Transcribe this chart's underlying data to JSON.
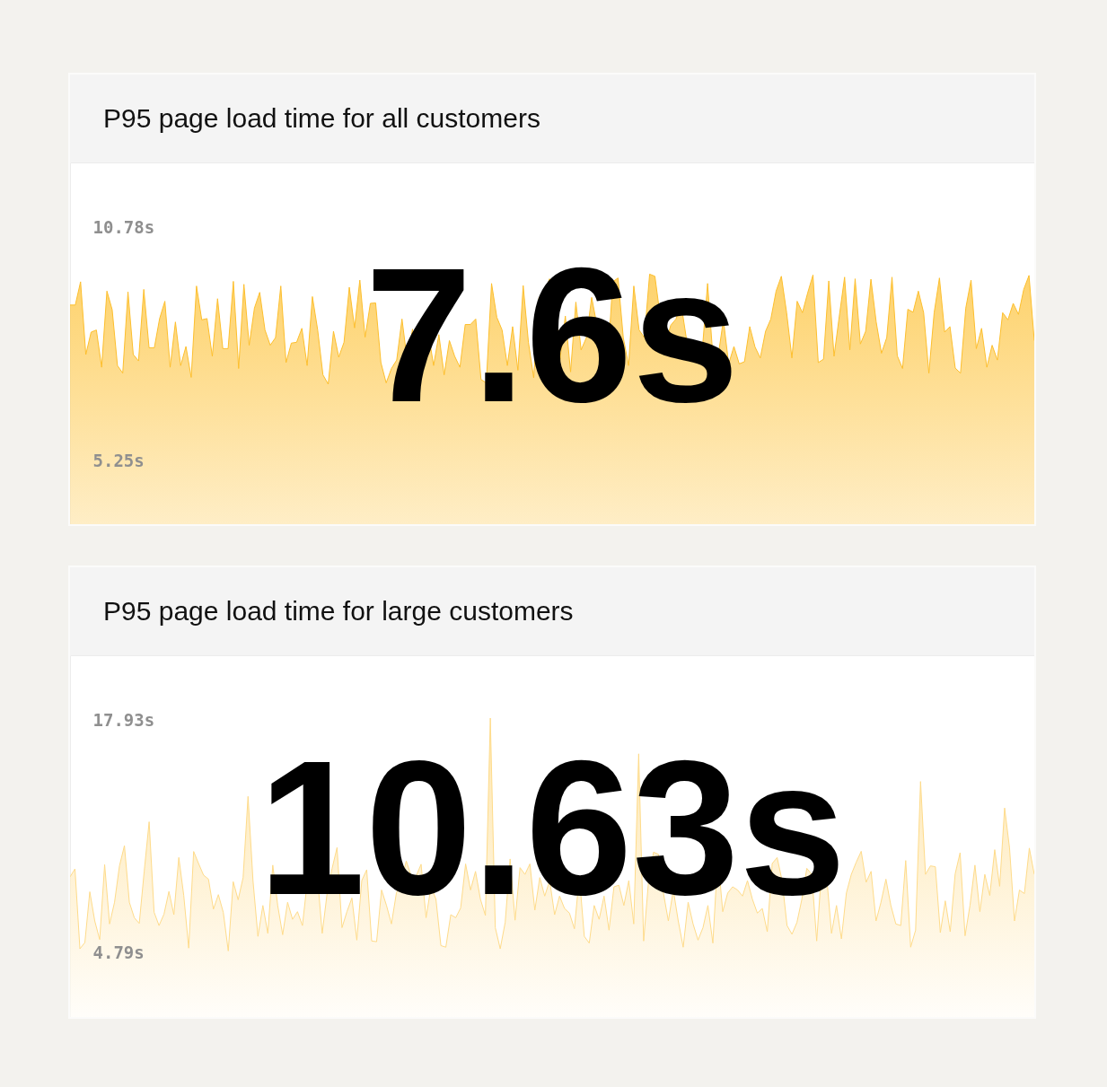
{
  "chart_data": [
    {
      "type": "area",
      "title": "P95 page load time for all customers",
      "color": "#fdbf2d",
      "tick_labels": "y",
      "ylim": [
        3.76,
        12.31
      ],
      "yticks": [
        {
          "value": 5.25,
          "label": "5.25s"
        },
        {
          "value": 10.78,
          "label": "10.78s"
        }
      ],
      "annotations": [
        "7.6s"
      ],
      "categories": [
        null,
        null,
        null,
        null,
        null,
        null,
        null,
        null,
        null,
        null,
        null,
        null,
        null,
        null,
        null,
        null,
        null,
        null,
        null,
        null,
        null,
        null,
        null,
        null,
        null,
        null,
        null,
        null,
        null,
        null,
        null,
        null,
        null,
        null,
        null,
        null,
        null,
        null,
        null,
        null,
        null,
        null,
        null,
        null,
        null,
        null,
        null,
        null,
        null,
        null,
        null,
        null,
        null,
        null,
        null,
        null,
        null,
        null,
        null,
        null,
        null,
        null,
        null,
        null,
        null,
        null,
        null,
        null,
        null,
        null,
        null,
        null,
        null,
        null,
        null,
        null,
        null,
        null,
        null,
        null,
        null,
        null,
        null,
        null,
        null,
        null,
        null,
        null,
        null,
        null,
        null,
        null,
        null,
        null,
        null,
        null,
        null,
        null,
        null,
        null,
        null,
        null,
        null,
        null,
        null,
        null,
        null,
        null,
        null,
        null,
        null,
        null,
        null,
        null,
        null,
        null,
        null,
        null,
        null,
        null,
        null,
        null,
        null,
        null,
        null,
        null,
        null,
        null,
        null,
        null,
        null,
        null,
        null,
        null,
        null,
        null,
        null,
        null,
        null,
        null,
        null,
        null,
        null,
        null,
        null,
        null,
        null,
        null,
        null,
        null,
        null,
        null,
        null,
        null,
        null,
        null,
        null,
        null,
        null,
        null,
        null,
        null,
        null,
        null,
        null,
        null,
        null,
        null,
        null,
        null,
        null,
        null,
        null,
        null,
        null,
        null,
        null,
        null,
        null,
        null,
        null,
        null,
        null,
        null
      ],
      "values": [
        8.94,
        8.94,
        9.49,
        7.77,
        8.3,
        8.35,
        7.47,
        9.27,
        8.83,
        7.51,
        7.33,
        9.25,
        7.77,
        7.62,
        9.31,
        7.93,
        7.93,
        8.62,
        9.03,
        7.47,
        8.54,
        7.51,
        7.96,
        7.23,
        9.39,
        8.59,
        8.62,
        7.73,
        9.09,
        7.91,
        7.91,
        9.5,
        7.44,
        9.43,
        7.99,
        8.87,
        9.24,
        8.35,
        7.99,
        8.17,
        9.39,
        7.58,
        8.04,
        8.06,
        8.39,
        7.51,
        9.14,
        8.35,
        7.29,
        7.07,
        8.32,
        7.71,
        8.06,
        9.36,
        8.4,
        9.53,
        8.18,
        8.98,
        8.99,
        7.58,
        7.1,
        7.44,
        7.64,
        8.61,
        7.62,
        8.37,
        7.12,
        8.67,
        8.28,
        7.51,
        8.24,
        7.29,
        8.1,
        7.73,
        7.47,
        8.48,
        8.48,
        8.61,
        7.18,
        7.1,
        9.45,
        8.65,
        8.35,
        7.51,
        8.43,
        7.4,
        9.4,
        8.06,
        7.22,
        9.12,
        9.2,
        9.56,
        9.27,
        7.66,
        8.68,
        7.36,
        9.01,
        7.88,
        8.17,
        9.12,
        8.46,
        7.29,
        7.51,
        9.49,
        9.58,
        8.17,
        7.51,
        9.39,
        8.35,
        8.17,
        9.67,
        9.62,
        8.68,
        8.02,
        8.46,
        8.61,
        8.94,
        8.13,
        7.95,
        7.84,
        7.88,
        9.45,
        7.73,
        7.73,
        8.59,
        7.55,
        7.96,
        7.55,
        7.6,
        8.43,
        7.95,
        7.69,
        8.32,
        8.61,
        9.27,
        9.62,
        8.76,
        7.69,
        9.03,
        8.76,
        9.23,
        9.65,
        7.58,
        7.66,
        9.51,
        7.73,
        8.68,
        9.6,
        7.88,
        9.56,
        8.02,
        8.32,
        9.55,
        8.54,
        7.8,
        8.17,
        9.6,
        7.74,
        7.44,
        8.84,
        8.77,
        9.27,
        8.76,
        7.33,
        8.76,
        9.58,
        8.3,
        8.43,
        7.45,
        7.33,
        8.87,
        9.53,
        7.91,
        8.39,
        7.47,
        7.99,
        7.64,
        8.76,
        8.59,
        8.98,
        8.72,
        9.31,
        9.64,
        8.1
      ]
    },
    {
      "type": "area",
      "title": "P95 page load time for large customers",
      "color": "#fedb8a",
      "tick_labels": "y",
      "ylim": [
        1.2,
        21.57
      ],
      "yticks": [
        {
          "value": 4.79,
          "label": "4.79s"
        },
        {
          "value": 17.93,
          "label": "17.93s"
        }
      ],
      "annotations": [
        "10.63s"
      ],
      "categories": [
        null,
        null,
        null,
        null,
        null,
        null,
        null,
        null,
        null,
        null,
        null,
        null,
        null,
        null,
        null,
        null,
        null,
        null,
        null,
        null,
        null,
        null,
        null,
        null,
        null,
        null,
        null,
        null,
        null,
        null,
        null,
        null,
        null,
        null,
        null,
        null,
        null,
        null,
        null,
        null,
        null,
        null,
        null,
        null,
        null,
        null,
        null,
        null,
        null,
        null,
        null,
        null,
        null,
        null,
        null,
        null,
        null,
        null,
        null,
        null,
        null,
        null,
        null,
        null,
        null,
        null,
        null,
        null,
        null,
        null,
        null,
        null,
        null,
        null,
        null,
        null,
        null,
        null,
        null,
        null,
        null,
        null,
        null,
        null,
        null,
        null,
        null,
        null,
        null,
        null,
        null,
        null,
        null,
        null,
        null,
        null,
        null,
        null,
        null,
        null,
        null,
        null,
        null,
        null,
        null,
        null,
        null,
        null,
        null,
        null,
        null,
        null,
        null,
        null,
        null,
        null,
        null,
        null,
        null,
        null,
        null,
        null,
        null,
        null,
        null,
        null,
        null,
        null,
        null,
        null,
        null,
        null,
        null,
        null,
        null,
        null,
        null,
        null,
        null,
        null,
        null,
        null,
        null,
        null,
        null,
        null,
        null,
        null,
        null,
        null,
        null,
        null,
        null,
        null,
        null,
        null,
        null,
        null,
        null,
        null,
        null,
        null,
        null,
        null,
        null,
        null,
        null,
        null,
        null,
        null,
        null,
        null,
        null,
        null,
        null,
        null,
        null,
        null,
        null,
        null,
        null,
        null,
        null,
        null,
        null,
        null,
        null,
        null,
        null,
        null,
        null,
        null,
        null,
        null,
        null,
        null
      ],
      "values": [
        9.09,
        9.54,
        5.04,
        5.39,
        8.25,
        6.61,
        5.56,
        9.78,
        6.44,
        7.66,
        9.71,
        10.85,
        7.66,
        6.79,
        6.47,
        9.4,
        12.19,
        7.1,
        6.35,
        6.99,
        8.27,
        6.96,
        10.18,
        8.04,
        5.08,
        10.52,
        9.84,
        9.19,
        8.96,
        7.27,
        8.09,
        7.08,
        4.92,
        8.82,
        7.8,
        9.05,
        13.62,
        8.88,
        5.74,
        7.48,
        5.91,
        9.75,
        7.48,
        5.83,
        7.66,
        6.7,
        7.13,
        6.35,
        8.88,
        9.4,
        9.23,
        5.91,
        8.18,
        9.57,
        10.74,
        6.23,
        7.13,
        7.9,
        5.53,
        8.88,
        9.49,
        5.48,
        5.44,
        8.35,
        7.48,
        6.44,
        8.18,
        8.88,
        9.98,
        9.14,
        9.14,
        9.8,
        6.79,
        8.53,
        7.83,
        5.22,
        5.13,
        6.96,
        6.79,
        7.34,
        9.82,
        8.35,
        9.4,
        7.83,
        6.92,
        18.03,
        6.23,
        5.04,
        6.52,
        10.1,
        6.65,
        9.61,
        9.23,
        9.82,
        7.22,
        9.05,
        8.01,
        8.88,
        6.96,
        8.01,
        7.31,
        7.05,
        6.17,
        9.14,
        5.74,
        5.36,
        7.48,
        6.7,
        8.01,
        6.09,
        8.53,
        8.62,
        7.48,
        8.88,
        6.44,
        16.02,
        5.48,
        8.88,
        10.48,
        10.36,
        8.18,
        6.61,
        8.35,
        6.61,
        5.13,
        7.66,
        6.44,
        5.53,
        6.23,
        7.48,
        5.36,
        10.27,
        7.13,
        8.18,
        8.53,
        8.35,
        8.01,
        8.88,
        7.83,
        7.05,
        7.31,
        6.0,
        9.84,
        10.18,
        8.88,
        6.35,
        5.86,
        6.52,
        7.83,
        9.57,
        9.23,
        5.48,
        9.54,
        9.14,
        5.91,
        7.48,
        5.6,
        8.18,
        9.23,
        9.92,
        10.53,
        8.79,
        9.4,
        6.61,
        7.66,
        8.96,
        7.48,
        6.44,
        6.35,
        10.01,
        5.13,
        6.09,
        14.46,
        9.23,
        9.71,
        9.66,
        5.95,
        7.74,
        6.0,
        9.26,
        10.45,
        5.77,
        7.48,
        9.75,
        7.13,
        9.23,
        8.04,
        10.62,
        8.56,
        12.97,
        10.71,
        6.61,
        8.35,
        8.15,
        10.71,
        9.23
      ]
    }
  ]
}
